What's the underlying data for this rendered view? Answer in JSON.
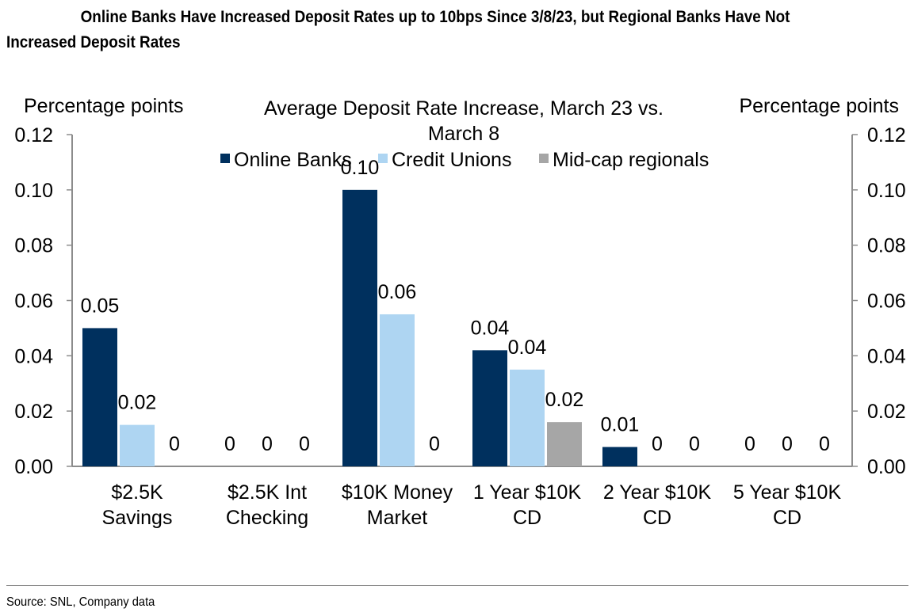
{
  "header": {
    "title": "Online Banks Have Increased Deposit Rates up to 10bps Since 3/8/23, but Regional Banks Have Not Increased Deposit Rates"
  },
  "footer": {
    "source": "Source: SNL, Company data"
  },
  "colors": {
    "online": "#00305e",
    "credit": "#aed5f2",
    "midcap": "#a6a6a6",
    "axis": "#8c8c8c"
  },
  "chart_data": {
    "type": "bar",
    "title": "Average Deposit Rate Increase, March 23 vs. March 8",
    "title_lines": [
      "Average Deposit Rate Increase, March 23 vs.",
      "March 8"
    ],
    "ylabel_left": "Percentage points",
    "ylabel_right": "Percentage points",
    "ylim": [
      0,
      0.12
    ],
    "yticks": [
      "0.00",
      "0.02",
      "0.04",
      "0.06",
      "0.08",
      "0.10",
      "0.12"
    ],
    "legend_position": "top",
    "categories": [
      "$2.5K Savings",
      "$2.5K Int Checking",
      "$10K Money Market",
      "1 Year $10K CD",
      "2 Year $10K CD",
      "5 Year $10K CD"
    ],
    "category_lines": [
      [
        "$2.5K",
        "Savings"
      ],
      [
        "$2.5K Int",
        "Checking"
      ],
      [
        "$10K Money",
        "Market"
      ],
      [
        "1 Year $10K",
        "CD"
      ],
      [
        "2 Year $10K",
        "CD"
      ],
      [
        "5 Year $10K",
        "CD"
      ]
    ],
    "series": [
      {
        "name": "Online Banks",
        "color": "#00305e",
        "values": [
          0.05,
          0,
          0.1,
          0.042,
          0.007,
          0
        ],
        "labels": [
          "0.05",
          "0",
          "0.10",
          "0.04",
          "0.01",
          "0"
        ]
      },
      {
        "name": "Credit Unions",
        "color": "#aed5f2",
        "values": [
          0.015,
          0,
          0.055,
          0.035,
          0,
          0
        ],
        "labels": [
          "0.02",
          "0",
          "0.06",
          "0.04",
          "0",
          "0"
        ]
      },
      {
        "name": "Mid-cap regionals",
        "color": "#a6a6a6",
        "values": [
          0,
          0,
          0,
          0.016,
          0,
          0
        ],
        "labels": [
          "0",
          "0",
          "0",
          "0.02",
          "0",
          "0"
        ]
      }
    ]
  }
}
